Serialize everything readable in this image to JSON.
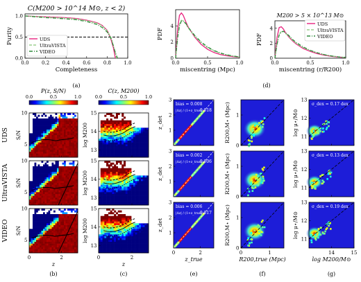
{
  "panel_labels": [
    "(a)",
    "(b)",
    "(c)",
    "(d)",
    "(e)",
    "(f)",
    "(g)"
  ],
  "survey_rows": [
    "UDS",
    "UltraVISTA",
    "VIDEO"
  ],
  "palette": {
    "uds": "#e8237f",
    "ultravista": "#9bcf8e",
    "video": "#2f8a3c"
  },
  "chart_data": [
    {
      "id": "a",
      "type": "line",
      "title": "C(M200 > 10^14 M⊙, z < 2)",
      "xlabel": "Completeness",
      "ylabel": "Purity",
      "xlim": [
        0.0,
        1.0
      ],
      "ylim": [
        0.0,
        1.05
      ],
      "xticks": [
        "0.0",
        "0.2",
        "0.4",
        "0.6",
        "0.8",
        "1.0"
      ],
      "yticks": [
        "0.0",
        "0.5",
        "1.0"
      ],
      "reference_line": 0.5,
      "legend": [
        "UDS",
        "UltraVISTA",
        "VIDEO"
      ],
      "legend_position": "bottom-left",
      "series": [
        {
          "name": "UDS",
          "x": [
            0.0,
            0.1,
            0.2,
            0.3,
            0.4,
            0.5,
            0.6,
            0.7,
            0.75,
            0.8,
            0.83,
            0.86,
            0.88
          ],
          "y": [
            1.0,
            0.99,
            0.98,
            0.97,
            0.96,
            0.94,
            0.9,
            0.84,
            0.78,
            0.66,
            0.5,
            0.25,
            0.0
          ]
        },
        {
          "name": "UltraVISTA",
          "x": [
            0.0,
            0.1,
            0.2,
            0.3,
            0.4,
            0.5,
            0.6,
            0.7,
            0.75,
            0.8,
            0.84,
            0.87,
            0.89
          ],
          "y": [
            1.0,
            0.99,
            0.97,
            0.96,
            0.95,
            0.93,
            0.89,
            0.83,
            0.77,
            0.65,
            0.48,
            0.22,
            0.0
          ]
        },
        {
          "name": "VIDEO",
          "x": [
            0.0,
            0.1,
            0.2,
            0.3,
            0.4,
            0.5,
            0.6,
            0.7,
            0.75,
            0.8,
            0.84,
            0.87,
            0.9
          ],
          "y": [
            1.0,
            0.98,
            0.96,
            0.95,
            0.93,
            0.91,
            0.87,
            0.8,
            0.73,
            0.62,
            0.45,
            0.2,
            0.0
          ]
        }
      ]
    },
    {
      "id": "d1",
      "type": "line",
      "xlabel": "miscentring (Mpc)",
      "ylabel": "PDF",
      "xlim": [
        0.0,
        1.0
      ],
      "ylim": [
        0,
        6
      ],
      "xticks": [
        "0.0",
        "0.5",
        "1.0"
      ],
      "yticks": [
        "0",
        "2",
        "4"
      ],
      "series": [
        {
          "name": "UDS",
          "x": [
            0,
            0.03,
            0.06,
            0.09,
            0.12,
            0.16,
            0.2,
            0.3,
            0.4,
            0.5,
            0.6,
            0.7,
            0.8,
            0.9,
            1.0
          ],
          "y": [
            0,
            3.6,
            5.3,
            5.6,
            5.3,
            4.5,
            3.8,
            2.6,
            1.7,
            1.1,
            0.7,
            0.45,
            0.3,
            0.2,
            0.12
          ]
        },
        {
          "name": "UltraVISTA",
          "x": [
            0,
            0.03,
            0.06,
            0.09,
            0.12,
            0.16,
            0.2,
            0.3,
            0.4,
            0.5,
            0.6,
            0.7,
            0.8,
            0.9,
            1.0
          ],
          "y": [
            0,
            2.6,
            4.2,
            4.7,
            4.6,
            4.2,
            3.7,
            2.7,
            1.9,
            1.3,
            0.9,
            0.6,
            0.4,
            0.25,
            0.15
          ]
        },
        {
          "name": "VIDEO",
          "x": [
            0,
            0.03,
            0.06,
            0.09,
            0.12,
            0.16,
            0.2,
            0.3,
            0.4,
            0.5,
            0.6,
            0.7,
            0.8,
            0.9,
            1.0
          ],
          "y": [
            0,
            2.5,
            4.0,
            4.6,
            4.6,
            4.3,
            3.8,
            2.8,
            2.0,
            1.4,
            0.95,
            0.65,
            0.42,
            0.27,
            0.16
          ]
        }
      ]
    },
    {
      "id": "d2",
      "type": "line",
      "title": "M200 > 5 × 10^13 M⊙",
      "xlabel": "miscentring (r/R200)",
      "ylabel": "PDF",
      "xlim": [
        0.0,
        1.0
      ],
      "ylim": [
        0,
        5
      ],
      "xticks": [
        "0.0",
        "0.5",
        "1.0"
      ],
      "yticks": [
        "0",
        "2",
        "4"
      ],
      "legend": [
        "UDS",
        "UltraVISTA",
        "VIDEO"
      ],
      "legend_position": "top-right",
      "series": [
        {
          "name": "UDS",
          "x": [
            0,
            0.03,
            0.06,
            0.09,
            0.12,
            0.15,
            0.2,
            0.25,
            0.3,
            0.4,
            0.5,
            0.6,
            0.7,
            0.8,
            0.9,
            1.0
          ],
          "y": [
            0,
            2.8,
            4.1,
            4.2,
            3.9,
            3.4,
            2.8,
            2.3,
            1.9,
            1.3,
            0.9,
            0.6,
            0.4,
            0.25,
            0.15,
            0.08
          ]
        },
        {
          "name": "UltraVISTA",
          "x": [
            0,
            0.03,
            0.06,
            0.09,
            0.12,
            0.15,
            0.2,
            0.25,
            0.3,
            0.4,
            0.5,
            0.6,
            0.7,
            0.8,
            0.9,
            1.0
          ],
          "y": [
            0,
            2.0,
            3.2,
            3.6,
            3.6,
            3.3,
            2.9,
            2.4,
            2.0,
            1.4,
            1.0,
            0.7,
            0.45,
            0.3,
            0.18,
            0.1
          ]
        },
        {
          "name": "VIDEO",
          "x": [
            0,
            0.03,
            0.06,
            0.09,
            0.12,
            0.15,
            0.2,
            0.25,
            0.3,
            0.4,
            0.5,
            0.6,
            0.7,
            0.8,
            0.9,
            1.0
          ],
          "y": [
            0,
            1.9,
            3.1,
            3.5,
            3.6,
            3.4,
            3.0,
            2.5,
            2.1,
            1.5,
            1.05,
            0.72,
            0.47,
            0.3,
            0.18,
            0.1
          ]
        }
      ]
    },
    {
      "id": "b",
      "type": "heatmap",
      "title": "P(z, S/N)",
      "colorbar": {
        "range": [
          0.0,
          1.0
        ],
        "ticks": [
          "0.0",
          "0.5",
          "1.0"
        ]
      },
      "xlabel": "z",
      "ylabel": "S/N",
      "xlim": [
        0,
        3
      ],
      "ylim": [
        3,
        10
      ],
      "xticks": [
        "0",
        "2"
      ],
      "yticks": [
        "5",
        "10"
      ],
      "rows": [
        "UDS",
        "UltraVISTA",
        "VIDEO"
      ]
    },
    {
      "id": "c",
      "type": "heatmap",
      "title": "C(z, M200)",
      "colorbar": {
        "range": [
          0.0,
          1.0
        ],
        "ticks": [
          "0.0",
          "0.5",
          "1.0"
        ]
      },
      "xlabel": "z",
      "ylabel": "log M200",
      "xlim": [
        0,
        3
      ],
      "ylim": [
        12.6,
        15
      ],
      "xticks": [
        "0",
        "2"
      ],
      "yticks": [
        "13",
        "14",
        "15"
      ],
      "rows": [
        "UDS",
        "UltraVISTA",
        "VIDEO"
      ]
    },
    {
      "id": "e",
      "type": "scatter",
      "xlabel": "z_true",
      "ylabel": "z_det",
      "xlim": [
        0,
        3
      ],
      "ylim": [
        0,
        3
      ],
      "xticks": [
        "0",
        "2"
      ],
      "yticks": [
        "1",
        "2",
        "3"
      ],
      "stats": [
        {
          "row": "UDS",
          "bias": "bias = 0.008",
          "scatter": "0.018"
        },
        {
          "row": "UltraVISTA",
          "bias": "bias = 0.002",
          "scatter": "0.006"
        },
        {
          "row": "VIDEO",
          "bias": "bias = 0.006",
          "scatter": "0.017"
        }
      ],
      "scatter_label": "|Δz| / (1+z_true) ="
    },
    {
      "id": "f",
      "type": "heatmap",
      "xlabel": "R200,true (Mpc)",
      "ylabel": "R200,M⋆ (Mpc)",
      "xlim": [
        0,
        1.5
      ],
      "ylim": [
        0,
        1.5
      ],
      "xticks": [
        "0",
        "1"
      ],
      "yticks": [
        "0",
        "1"
      ]
    },
    {
      "id": "g",
      "type": "heatmap",
      "xlabel": "log M200/M⊙",
      "ylabel": "log μ⋆/M⊙",
      "xlim": [
        13,
        15
      ],
      "ylim": [
        10.5,
        13
      ],
      "xticks": [
        "14",
        "15"
      ],
      "yticks": [
        "11",
        "12",
        "13"
      ],
      "stats": [
        {
          "row": "UDS",
          "sigma": "σ_dex = 0.17 dex"
        },
        {
          "row": "UltraVISTA",
          "sigma": "σ_dex = 0.13 dex"
        },
        {
          "row": "VIDEO",
          "sigma": "σ_dex = 0.19 dex"
        }
      ]
    }
  ]
}
